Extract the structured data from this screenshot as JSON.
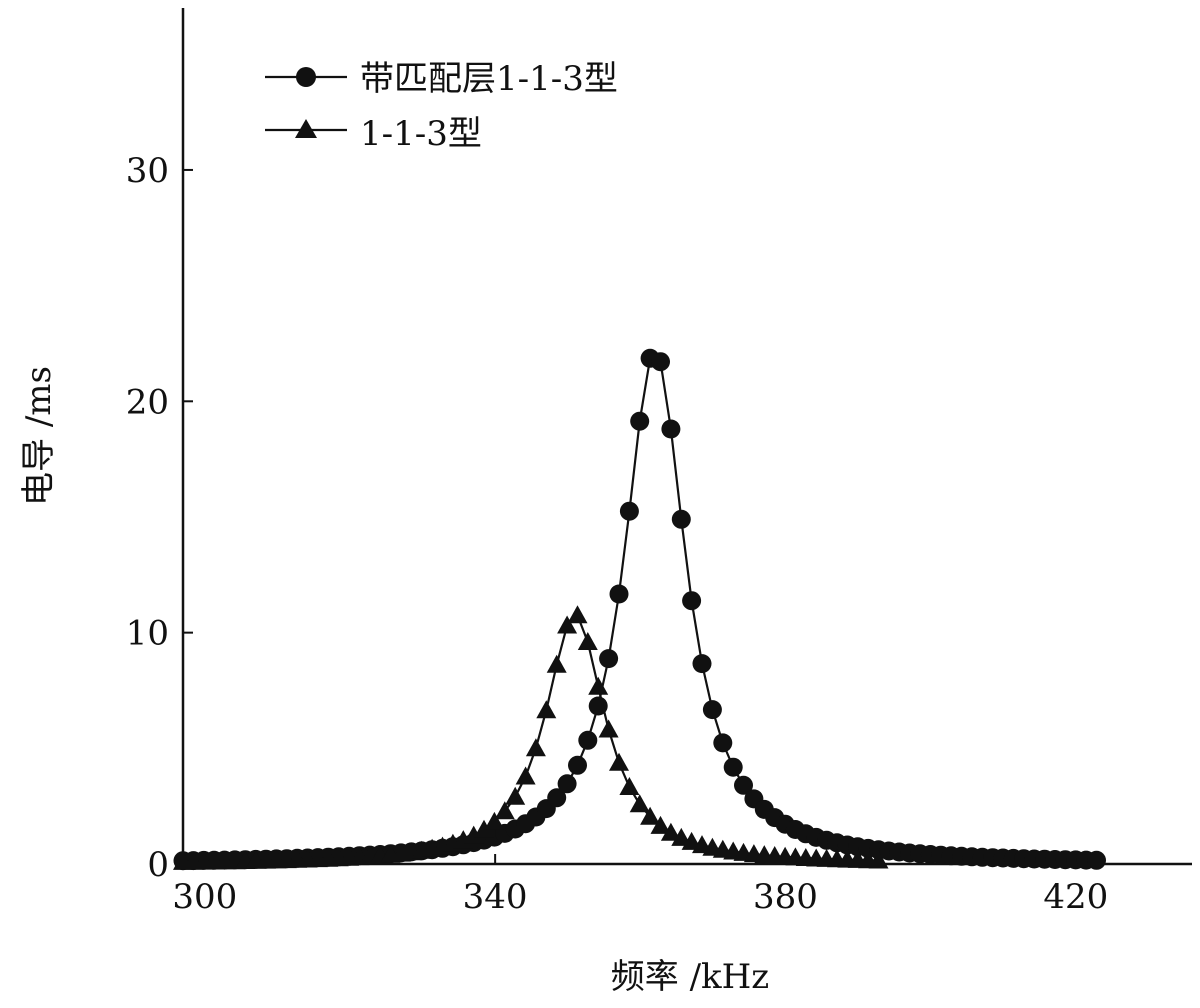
{
  "chart_data": {
    "type": "line",
    "title": "",
    "xlabel": "频率 /kHz",
    "ylabel": "电导 /ms",
    "xlim": [
      297,
      436
    ],
    "ylim": [
      0,
      37
    ],
    "x_ticks": [
      "300",
      "340",
      "380",
      "420"
    ],
    "y_ticks": [
      "0",
      "10",
      "20",
      "30"
    ],
    "grid": false,
    "legend_position": "top-left",
    "series": [
      {
        "name": "带匹配层1-1-3型",
        "marker": "circle",
        "x0": 297,
        "x_step": 1.43,
        "x_end": 424,
        "peak_x": 362,
        "peak_y": 22.2,
        "half_width": 5.2
      },
      {
        "name": "1-1-3型",
        "marker": "triangle",
        "x0": 297,
        "x_step": 1.43,
        "x_end": 393,
        "peak_x": 351,
        "peak_y": 10.8,
        "half_width": 5.0
      }
    ]
  },
  "colors": {
    "ink": "#111111",
    "background": "#ffffff"
  }
}
